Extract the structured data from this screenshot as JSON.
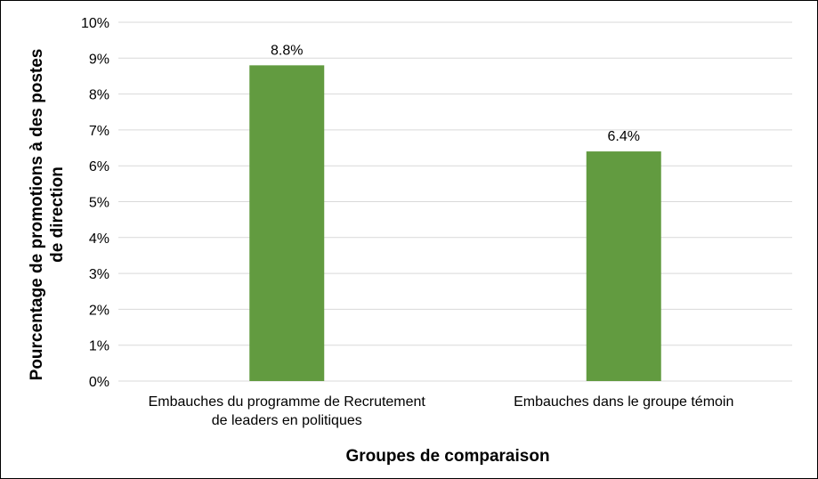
{
  "chart_data": {
    "type": "bar",
    "categories": [
      [
        "Embauches du programme de Recrutement",
        "de leaders en politiques"
      ],
      [
        "Embauches dans le groupe témoin"
      ]
    ],
    "values": [
      8.8,
      6.4
    ],
    "data_labels": [
      "8.8%",
      "6.4%"
    ],
    "title": "",
    "xlabel": "Groupes de comparaison",
    "ylabel": [
      "Pourcentage de promotions à des postes",
      "de direction"
    ],
    "ylim": [
      0,
      10
    ],
    "yticks": [
      "0%",
      "1%",
      "2%",
      "3%",
      "4%",
      "5%",
      "6%",
      "7%",
      "8%",
      "9%",
      "10%"
    ],
    "grid": true,
    "legend": "none",
    "bar_color": "#629b40",
    "grid_color": "#d9d9d9"
  }
}
